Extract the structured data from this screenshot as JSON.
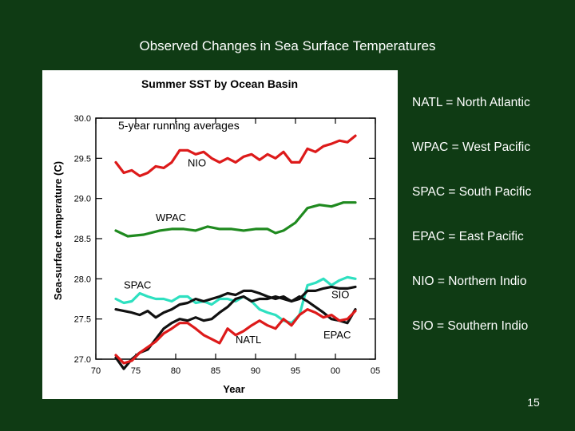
{
  "slide": {
    "title": "Observed Changes in Sea Surface Temperatures",
    "page_number": "15"
  },
  "legend_text": [
    "NATL = North Atlantic",
    "WPAC = West Pacific",
    "SPAC = South Pacific",
    "EPAC = East Pacific",
    "NIO = Northern Indio",
    "SIO = Southern Indio"
  ],
  "chart_data": {
    "type": "line",
    "title": "Summer SST by Ocean Basin",
    "subtitle": "5-year running averages",
    "xlabel": "Year",
    "ylabel": "Sea-surface temperature (C)",
    "xlim": [
      70,
      105
    ],
    "ylim": [
      27.0,
      30.0
    ],
    "x_ticks": [
      "70",
      "75",
      "80",
      "85",
      "90",
      "95",
      "00",
      "05"
    ],
    "y_ticks": [
      "27.0",
      "27.5",
      "28.0",
      "28.5",
      "29.0",
      "29.5",
      "30.0"
    ],
    "grid": false,
    "series": [
      {
        "name": "NIO",
        "color": "#dd1a1a",
        "x": [
          72.5,
          73.5,
          74.5,
          75.5,
          76.5,
          77.5,
          78.5,
          79.5,
          80.5,
          81.5,
          82.5,
          83.5,
          84.5,
          85.5,
          86.5,
          87.5,
          88.5,
          89.5,
          90.5,
          91.5,
          92.5,
          93.5,
          94.5,
          95.5,
          96.5,
          97.5,
          98.5,
          99.5,
          100.5,
          101.5,
          102.5
        ],
        "y": [
          29.45,
          29.32,
          29.35,
          29.28,
          29.32,
          29.4,
          29.38,
          29.45,
          29.6,
          29.6,
          29.55,
          29.58,
          29.5,
          29.45,
          29.5,
          29.45,
          29.52,
          29.55,
          29.48,
          29.55,
          29.5,
          29.58,
          29.45,
          29.45,
          29.62,
          29.58,
          29.65,
          29.68,
          29.72,
          29.7,
          29.78
        ]
      },
      {
        "name": "WPAC",
        "color": "#1f8a1f",
        "x": [
          72.5,
          74,
          76,
          78,
          79.5,
          81,
          82.5,
          84,
          85.5,
          87,
          88.5,
          90,
          91.5,
          92.5,
          93.5,
          95,
          96.5,
          98,
          99.5,
          101,
          102.5
        ],
        "y": [
          28.6,
          28.53,
          28.55,
          28.6,
          28.62,
          28.62,
          28.6,
          28.65,
          28.62,
          28.62,
          28.6,
          28.62,
          28.62,
          28.57,
          28.6,
          28.7,
          28.88,
          28.92,
          28.9,
          28.95,
          28.95
        ]
      },
      {
        "name": "SPAC",
        "color": "#2ee0c0",
        "x": [
          72.5,
          73.5,
          74.5,
          75.5,
          76.5,
          77.5,
          78.5,
          79.5,
          80.5,
          81.5,
          82.5,
          83.5,
          84.5,
          85.5,
          86.5,
          87.5,
          88.5,
          89.5,
          90.5,
          91.5,
          92.5,
          93.5,
          94.5,
          95.5,
          96.5,
          97.5,
          98.5,
          99.5,
          100.5,
          101.5,
          102.5
        ],
        "y": [
          27.75,
          27.7,
          27.72,
          27.82,
          27.78,
          27.75,
          27.75,
          27.72,
          27.78,
          27.78,
          27.7,
          27.72,
          27.68,
          27.75,
          27.75,
          27.72,
          27.78,
          27.72,
          27.62,
          27.58,
          27.55,
          27.48,
          27.45,
          27.55,
          27.92,
          27.95,
          28.0,
          27.92,
          27.98,
          28.02,
          28.0
        ]
      },
      {
        "name": "SIO",
        "color": "#111111",
        "x": [
          72.5,
          73.5,
          74.5,
          75.5,
          76.5,
          77.5,
          78.5,
          79.5,
          80.5,
          81.5,
          82.5,
          83.5,
          84.5,
          85.5,
          86.5,
          87.5,
          88.5,
          89.5,
          90.5,
          91.5,
          92.5,
          93.5,
          94.5,
          95.5,
          96.5,
          97.5,
          98.5,
          99.5,
          100.5,
          101.5,
          102.5
        ],
        "y": [
          27.62,
          27.6,
          27.58,
          27.55,
          27.6,
          27.52,
          27.58,
          27.62,
          27.68,
          27.7,
          27.75,
          27.72,
          27.75,
          27.78,
          27.82,
          27.8,
          27.85,
          27.85,
          27.82,
          27.78,
          27.75,
          27.78,
          27.72,
          27.75,
          27.85,
          27.85,
          27.88,
          27.9,
          27.88,
          27.88,
          27.9
        ]
      },
      {
        "name": "EPAC",
        "color": "#111111",
        "x": [
          72.5,
          73.5,
          74.5,
          75.5,
          76.5,
          77.5,
          78.5,
          79.5,
          80.5,
          81.5,
          82.5,
          83.5,
          84.5,
          85.5,
          86.5,
          87.5,
          88.5,
          89.5,
          90.5,
          91.5,
          92.5,
          93.5,
          94.5,
          95.5,
          96.5,
          97.5,
          98.5,
          99.5,
          100.5,
          101.5,
          102.5
        ],
        "y": [
          27.02,
          26.88,
          27.0,
          27.08,
          27.12,
          27.25,
          27.38,
          27.45,
          27.5,
          27.48,
          27.52,
          27.48,
          27.5,
          27.58,
          27.65,
          27.75,
          27.78,
          27.72,
          27.75,
          27.75,
          27.78,
          27.75,
          27.72,
          27.78,
          27.72,
          27.65,
          27.58,
          27.5,
          27.48,
          27.45,
          27.62
        ]
      },
      {
        "name": "NATL",
        "color": "#dd1a1a",
        "x": [
          72.5,
          73.5,
          74.5,
          75.5,
          76.5,
          77.5,
          78.5,
          79.5,
          80.5,
          81.5,
          82.5,
          83.5,
          84.5,
          85.5,
          86.5,
          87.5,
          88.5,
          89.5,
          90.5,
          91.5,
          92.5,
          93.5,
          94.5,
          95.5,
          96.5,
          97.5,
          98.5,
          99.5,
          100.5,
          101.5,
          102.5
        ],
        "y": [
          27.05,
          26.95,
          26.98,
          27.08,
          27.15,
          27.22,
          27.32,
          27.38,
          27.45,
          27.45,
          27.38,
          27.3,
          27.25,
          27.2,
          27.38,
          27.3,
          27.35,
          27.42,
          27.48,
          27.42,
          27.38,
          27.5,
          27.42,
          27.55,
          27.62,
          27.58,
          27.52,
          27.55,
          27.48,
          27.5,
          27.6
        ]
      }
    ],
    "annotations": [
      {
        "text": "NIO",
        "x": 81.5,
        "y": 29.4
      },
      {
        "text": "WPAC",
        "x": 77.5,
        "y": 28.72
      },
      {
        "text": "SPAC",
        "x": 73.5,
        "y": 27.88
      },
      {
        "text": "SIO",
        "x": 99.5,
        "y": 27.76
      },
      {
        "text": "EPAC",
        "x": 98.5,
        "y": 27.26
      },
      {
        "text": "NATL",
        "x": 87.5,
        "y": 27.2
      }
    ]
  }
}
